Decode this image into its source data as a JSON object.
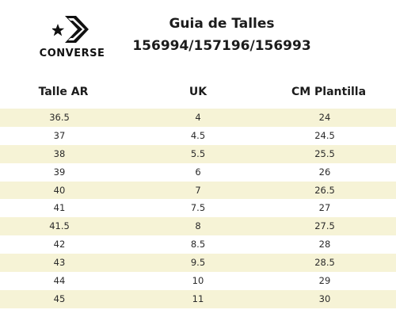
{
  "brand": {
    "name": "CONVERSE",
    "logo_icon": "converse-star-chevron-icon"
  },
  "header": {
    "title": "Guia de Talles",
    "models": "156994/157196/156993"
  },
  "table": {
    "columns": [
      "Talle AR",
      "UK",
      "CM Plantilla"
    ],
    "rows": [
      [
        "36.5",
        "4",
        "24"
      ],
      [
        "37",
        "4.5",
        "24.5"
      ],
      [
        "38",
        "5.5",
        "25.5"
      ],
      [
        "39",
        "6",
        "26"
      ],
      [
        "40",
        "7",
        "26.5"
      ],
      [
        "41",
        "7.5",
        "27"
      ],
      [
        "41.5",
        "8",
        "27.5"
      ],
      [
        "42",
        "8.5",
        "28"
      ],
      [
        "43",
        "9.5",
        "28.5"
      ],
      [
        "44",
        "10",
        "29"
      ],
      [
        "45",
        "11",
        "30"
      ]
    ]
  },
  "colors": {
    "row_shade": "#f6f3d6",
    "text": "#1c1c1c",
    "logo": "#111111"
  }
}
